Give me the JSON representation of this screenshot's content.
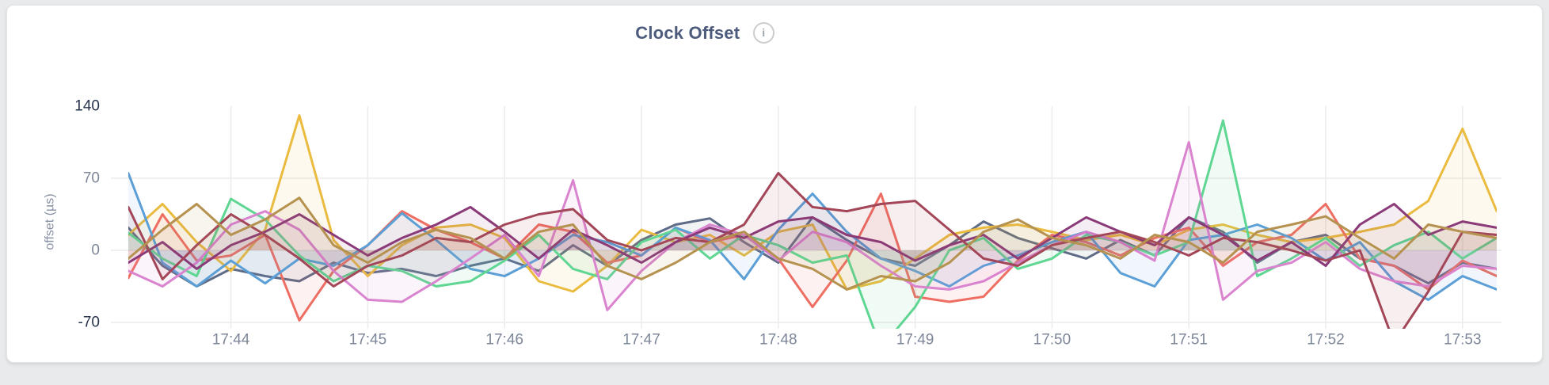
{
  "header": {
    "title": "Clock Offset",
    "info_glyph": "i"
  },
  "colors": {
    "title": "#4d5b7c",
    "tick_emphasis": "#26334d",
    "tick_normal": "#7d8799",
    "axis_label": "#8a93a5",
    "gridline": "#ececec",
    "card_background": "#ffffff",
    "page_background": "#e9eaeb"
  },
  "chart_data": {
    "type": "line",
    "title": "Clock Offset",
    "xlabel": "",
    "ylabel": "offset (µs)",
    "ylim": [
      -76,
      140
    ],
    "grid": true,
    "legend_position": "none",
    "x_range": [
      "17:43:15",
      "17:53:15"
    ],
    "sample_interval_seconds": 15,
    "fill_to_zero_opacity": 0.09,
    "yticks": [
      {
        "label": "140",
        "value": 140,
        "emphasis": true,
        "gridline": false
      },
      {
        "label": "70",
        "value": 70,
        "emphasis": false,
        "gridline": true
      },
      {
        "label": "0",
        "value": 0,
        "emphasis": false,
        "gridline": true
      },
      {
        "label": "-70",
        "value": -70,
        "emphasis": true,
        "gridline": true
      }
    ],
    "xticks": [
      {
        "label": "17:44",
        "index": 3
      },
      {
        "label": "17:45",
        "index": 7
      },
      {
        "label": "17:46",
        "index": 11
      },
      {
        "label": "17:47",
        "index": 15
      },
      {
        "label": "17:48",
        "index": 19
      },
      {
        "label": "17:49",
        "index": 23
      },
      {
        "label": "17:50",
        "index": 27
      },
      {
        "label": "17:51",
        "index": 31
      },
      {
        "label": "17:52",
        "index": 35
      },
      {
        "label": "17:53",
        "index": 39
      }
    ],
    "series": [
      {
        "name": "slate",
        "color": "#5F6C87",
        "values": [
          22,
          -15,
          -35,
          -18,
          -25,
          -30,
          -12,
          -22,
          -18,
          -25,
          -15,
          -8,
          -20,
          5,
          -15,
          10,
          25,
          31,
          8,
          -12,
          32,
          10,
          -8,
          -15,
          5,
          28,
          12,
          2,
          -8,
          10,
          -5,
          32,
          18,
          -12,
          8,
          15,
          -8,
          -15,
          -32,
          -12,
          -18
        ]
      },
      {
        "name": "gold",
        "color": "#EABB3F",
        "values": [
          15,
          45,
          8,
          -20,
          20,
          131,
          10,
          -25,
          5,
          22,
          25,
          12,
          -30,
          -40,
          -15,
          20,
          8,
          15,
          -5,
          18,
          25,
          -38,
          -30,
          -8,
          15,
          22,
          25,
          18,
          10,
          15,
          5,
          20,
          25,
          15,
          8,
          12,
          18,
          25,
          48,
          118,
          38
        ]
      },
      {
        "name": "red",
        "color": "#EE6E63",
        "values": [
          -27,
          35,
          -10,
          -5,
          15,
          -68,
          -20,
          5,
          38,
          20,
          8,
          -8,
          25,
          18,
          -12,
          -5,
          22,
          8,
          15,
          -8,
          -55,
          -10,
          55,
          -45,
          -50,
          -45,
          -10,
          15,
          8,
          -5,
          12,
          22,
          -15,
          8,
          15,
          45,
          -8,
          -15,
          -38,
          -10,
          -25
        ]
      },
      {
        "name": "blue",
        "color": "#5B9FD6",
        "values": [
          75,
          -12,
          -35,
          -10,
          -32,
          -8,
          -15,
          5,
          36,
          10,
          -18,
          -25,
          -8,
          15,
          8,
          -5,
          22,
          10,
          -28,
          20,
          55,
          18,
          -8,
          -20,
          -35,
          -15,
          -5,
          8,
          18,
          -22,
          -35,
          10,
          15,
          25,
          12,
          -10,
          8,
          -30,
          -48,
          -25,
          -38
        ]
      },
      {
        "name": "green",
        "color": "#5FD692",
        "values": [
          17,
          -8,
          -25,
          50,
          30,
          -5,
          -30,
          -15,
          -20,
          -35,
          -30,
          -10,
          15,
          -18,
          -28,
          8,
          20,
          -8,
          15,
          5,
          -12,
          -5,
          -95,
          -55,
          0,
          12,
          -18,
          -8,
          15,
          8,
          -5,
          8,
          126,
          -25,
          -8,
          12,
          -15,
          5,
          18,
          -8,
          12
        ]
      },
      {
        "name": "pink",
        "color": "#DA84CF",
        "values": [
          -20,
          -35,
          -12,
          25,
          38,
          20,
          -20,
          -48,
          -50,
          -30,
          -8,
          15,
          -25,
          68,
          -58,
          -20,
          8,
          25,
          15,
          -10,
          18,
          8,
          -15,
          -35,
          -38,
          -30,
          -12,
          5,
          18,
          8,
          -10,
          105,
          -48,
          -20,
          -12,
          8,
          -18,
          -30,
          -35,
          -15,
          -18
        ]
      },
      {
        "name": "purple",
        "color": "#8A3A78",
        "values": [
          -12,
          8,
          -18,
          5,
          18,
          35,
          15,
          -5,
          12,
          25,
          42,
          18,
          -8,
          20,
          5,
          -12,
          8,
          22,
          12,
          28,
          32,
          15,
          8,
          -10,
          5,
          15,
          -8,
          12,
          32,
          18,
          5,
          32,
          15,
          -10,
          8,
          -15,
          25,
          45,
          15,
          28,
          22
        ]
      },
      {
        "name": "maroon",
        "color": "#A34658",
        "values": [
          42,
          -28,
          5,
          35,
          15,
          -8,
          -35,
          -15,
          -5,
          12,
          8,
          25,
          35,
          40,
          10,
          0,
          12,
          8,
          25,
          75,
          42,
          38,
          45,
          48,
          20,
          -8,
          -15,
          5,
          12,
          18,
          8,
          -5,
          12,
          8,
          0,
          -10,
          0,
          -90,
          -40,
          18,
          15
        ]
      },
      {
        "name": "khaki",
        "color": "#B5924F",
        "values": [
          -8,
          20,
          45,
          15,
          30,
          51,
          5,
          -12,
          8,
          20,
          12,
          -8,
          18,
          25,
          -15,
          -28,
          -12,
          8,
          18,
          -8,
          -18,
          -38,
          -25,
          -30,
          -12,
          18,
          30,
          12,
          5,
          -8,
          15,
          8,
          -12,
          18,
          25,
          33,
          12,
          -8,
          25,
          18,
          12
        ]
      }
    ]
  }
}
